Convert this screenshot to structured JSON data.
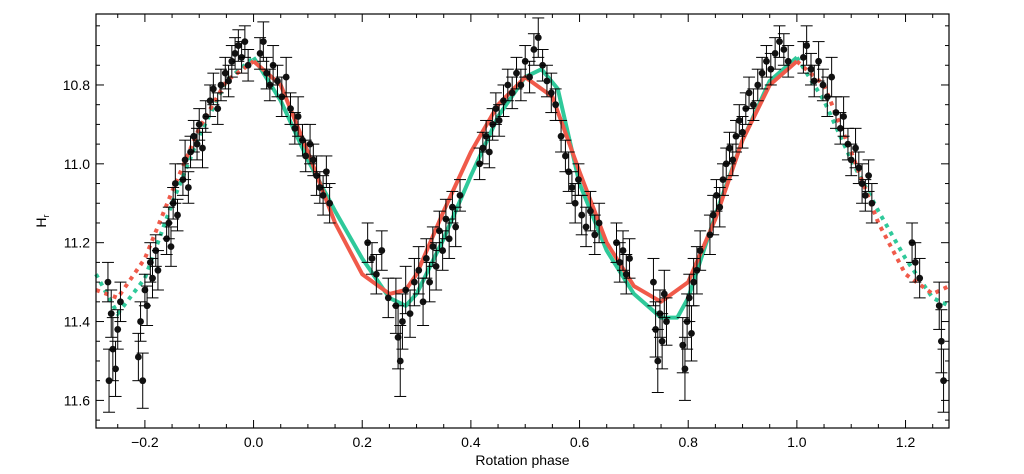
{
  "chart_data": {
    "type": "scatter",
    "xlabel": "Rotation phase",
    "ylabel": "H",
    "ylabel_subscript": "r",
    "xlim": [
      -0.29,
      1.28
    ],
    "ylim": [
      11.67,
      10.62
    ],
    "y_inverted": true,
    "grid": false,
    "x_ticks": [
      {
        "v": -0.2,
        "label": "−0.2"
      },
      {
        "v": 0.0,
        "label": "0.0"
      },
      {
        "v": 0.2,
        "label": "0.2"
      },
      {
        "v": 0.4,
        "label": "0.4"
      },
      {
        "v": 0.6,
        "label": "0.6"
      },
      {
        "v": 0.8,
        "label": "0.8"
      },
      {
        "v": 1.0,
        "label": "1.0"
      },
      {
        "v": 1.2,
        "label": "1.2"
      }
    ],
    "y_ticks": [
      {
        "v": 10.8,
        "label": "10.8"
      },
      {
        "v": 11.0,
        "label": "11.0"
      },
      {
        "v": 11.2,
        "label": "11.2"
      },
      {
        "v": 11.4,
        "label": "11.4"
      },
      {
        "v": 11.6,
        "label": "11.6"
      }
    ],
    "models": [
      {
        "color": "#2fc99a",
        "solid_range": [
          0.0,
          1.0
        ],
        "x": [
          -0.29,
          -0.25,
          -0.2,
          -0.15,
          -0.1,
          -0.05,
          0.0,
          0.05,
          0.1,
          0.15,
          0.2,
          0.25,
          0.28,
          0.3,
          0.35,
          0.4,
          0.45,
          0.5,
          0.53,
          0.56,
          0.6,
          0.65,
          0.7,
          0.75,
          0.78,
          0.8,
          0.85,
          0.9,
          0.95,
          1.0,
          1.05,
          1.1,
          1.15,
          1.2,
          1.25,
          1.28
        ],
        "y": [
          11.28,
          11.38,
          11.29,
          11.1,
          10.93,
          10.79,
          10.73,
          10.84,
          10.99,
          11.12,
          11.24,
          11.34,
          11.36,
          11.33,
          11.19,
          11.03,
          10.88,
          10.78,
          10.76,
          10.81,
          11.05,
          11.22,
          11.33,
          11.39,
          11.39,
          11.34,
          11.13,
          10.94,
          10.79,
          10.73,
          10.84,
          10.99,
          11.12,
          11.24,
          11.34,
          11.36
        ]
      },
      {
        "color": "#f05a4a",
        "solid_range": [
          0.0,
          1.0
        ],
        "x": [
          -0.29,
          -0.25,
          -0.2,
          -0.15,
          -0.1,
          -0.05,
          0.0,
          0.05,
          0.1,
          0.15,
          0.2,
          0.25,
          0.28,
          0.3,
          0.35,
          0.4,
          0.45,
          0.5,
          0.55,
          0.6,
          0.65,
          0.7,
          0.75,
          0.8,
          0.85,
          0.9,
          0.95,
          1.0,
          1.05,
          1.1,
          1.15,
          1.2,
          1.25,
          1.28
        ],
        "y": [
          11.32,
          11.34,
          11.24,
          11.07,
          10.91,
          10.79,
          10.74,
          10.8,
          10.97,
          11.15,
          11.28,
          11.33,
          11.32,
          11.28,
          11.12,
          10.97,
          10.85,
          10.78,
          10.83,
          11.02,
          11.2,
          11.31,
          11.35,
          11.3,
          11.14,
          10.94,
          10.8,
          10.74,
          10.8,
          10.97,
          11.15,
          11.28,
          11.33,
          11.31
        ]
      }
    ],
    "observations": [
      {
        "x": -0.268,
        "y": 11.3,
        "err": 0.05
      },
      {
        "x": -0.262,
        "y": 11.38,
        "err": 0.06
      },
      {
        "x": -0.259,
        "y": 11.47,
        "err": 0.08
      },
      {
        "x": -0.254,
        "y": 11.52,
        "err": 0.07
      },
      {
        "x": -0.25,
        "y": 11.42,
        "err": 0.05
      },
      {
        "x": -0.266,
        "y": 11.55,
        "err": 0.08
      },
      {
        "x": -0.245,
        "y": 11.35,
        "err": 0.05
      },
      {
        "x": -0.212,
        "y": 11.49,
        "err": 0.06
      },
      {
        "x": -0.208,
        "y": 11.4,
        "err": 0.05
      },
      {
        "x": -0.204,
        "y": 11.55,
        "err": 0.07
      },
      {
        "x": -0.2,
        "y": 11.32,
        "err": 0.04
      },
      {
        "x": -0.196,
        "y": 11.36,
        "err": 0.05
      },
      {
        "x": -0.19,
        "y": 11.25,
        "err": 0.05
      },
      {
        "x": -0.186,
        "y": 11.29,
        "err": 0.05
      },
      {
        "x": -0.18,
        "y": 11.22,
        "err": 0.04
      },
      {
        "x": -0.176,
        "y": 11.27,
        "err": 0.05
      },
      {
        "x": -0.16,
        "y": 11.19,
        "err": 0.04
      },
      {
        "x": -0.156,
        "y": 11.15,
        "err": 0.04
      },
      {
        "x": -0.152,
        "y": 11.21,
        "err": 0.05
      },
      {
        "x": -0.148,
        "y": 11.1,
        "err": 0.04
      },
      {
        "x": -0.144,
        "y": 11.05,
        "err": 0.05
      },
      {
        "x": -0.14,
        "y": 11.13,
        "err": 0.04
      },
      {
        "x": -0.13,
        "y": 11.04,
        "err": 0.04
      },
      {
        "x": -0.126,
        "y": 10.99,
        "err": 0.05
      },
      {
        "x": -0.12,
        "y": 11.06,
        "err": 0.04
      },
      {
        "x": -0.116,
        "y": 10.97,
        "err": 0.04
      },
      {
        "x": -0.11,
        "y": 10.93,
        "err": 0.04
      },
      {
        "x": -0.104,
        "y": 10.95,
        "err": 0.04
      },
      {
        "x": -0.1,
        "y": 10.9,
        "err": 0.04
      },
      {
        "x": -0.094,
        "y": 10.96,
        "err": 0.05
      },
      {
        "x": -0.088,
        "y": 10.88,
        "err": 0.04
      },
      {
        "x": -0.08,
        "y": 10.84,
        "err": 0.04
      },
      {
        "x": -0.074,
        "y": 10.81,
        "err": 0.04
      },
      {
        "x": -0.066,
        "y": 10.86,
        "err": 0.04
      },
      {
        "x": -0.06,
        "y": 10.8,
        "err": 0.04
      },
      {
        "x": -0.052,
        "y": 10.77,
        "err": 0.04
      },
      {
        "x": -0.046,
        "y": 10.79,
        "err": 0.04
      },
      {
        "x": -0.04,
        "y": 10.74,
        "err": 0.04
      },
      {
        "x": -0.034,
        "y": 10.72,
        "err": 0.04
      },
      {
        "x": -0.028,
        "y": 10.7,
        "err": 0.04
      },
      {
        "x": -0.022,
        "y": 10.73,
        "err": 0.04
      },
      {
        "x": -0.016,
        "y": 10.69,
        "err": 0.04
      },
      {
        "x": -0.01,
        "y": 10.75,
        "err": 0.04
      },
      {
        "x": 0.012,
        "y": 10.72,
        "err": 0.04
      },
      {
        "x": 0.018,
        "y": 10.69,
        "err": 0.05
      },
      {
        "x": 0.024,
        "y": 10.77,
        "err": 0.04
      },
      {
        "x": 0.03,
        "y": 10.8,
        "err": 0.04
      },
      {
        "x": 0.036,
        "y": 10.75,
        "err": 0.05
      },
      {
        "x": 0.044,
        "y": 10.79,
        "err": 0.04
      },
      {
        "x": 0.052,
        "y": 10.83,
        "err": 0.05
      },
      {
        "x": 0.06,
        "y": 10.78,
        "err": 0.05
      },
      {
        "x": 0.068,
        "y": 10.86,
        "err": 0.04
      },
      {
        "x": 0.076,
        "y": 10.91,
        "err": 0.04
      },
      {
        "x": 0.082,
        "y": 10.88,
        "err": 0.05
      },
      {
        "x": 0.09,
        "y": 10.94,
        "err": 0.04
      },
      {
        "x": 0.096,
        "y": 10.98,
        "err": 0.04
      },
      {
        "x": 0.104,
        "y": 10.95,
        "err": 0.05
      },
      {
        "x": 0.11,
        "y": 10.99,
        "err": 0.04
      },
      {
        "x": 0.116,
        "y": 11.03,
        "err": 0.05
      },
      {
        "x": 0.122,
        "y": 11.06,
        "err": 0.04
      },
      {
        "x": 0.128,
        "y": 11.08,
        "err": 0.05
      },
      {
        "x": 0.134,
        "y": 11.02,
        "err": 0.04
      },
      {
        "x": 0.14,
        "y": 11.1,
        "err": 0.05
      },
      {
        "x": 0.21,
        "y": 11.2,
        "err": 0.05
      },
      {
        "x": 0.218,
        "y": 11.24,
        "err": 0.04
      },
      {
        "x": 0.226,
        "y": 11.28,
        "err": 0.05
      },
      {
        "x": 0.236,
        "y": 11.22,
        "err": 0.05
      },
      {
        "x": 0.248,
        "y": 11.34,
        "err": 0.05
      },
      {
        "x": 0.262,
        "y": 11.36,
        "err": 0.07
      },
      {
        "x": 0.266,
        "y": 11.44,
        "err": 0.08
      },
      {
        "x": 0.27,
        "y": 11.5,
        "err": 0.09
      },
      {
        "x": 0.274,
        "y": 11.4,
        "err": 0.07
      },
      {
        "x": 0.28,
        "y": 11.32,
        "err": 0.06
      },
      {
        "x": 0.288,
        "y": 11.38,
        "err": 0.06
      },
      {
        "x": 0.296,
        "y": 11.3,
        "err": 0.06
      },
      {
        "x": 0.304,
        "y": 11.27,
        "err": 0.06
      },
      {
        "x": 0.312,
        "y": 11.35,
        "err": 0.06
      },
      {
        "x": 0.318,
        "y": 11.24,
        "err": 0.05
      },
      {
        "x": 0.324,
        "y": 11.3,
        "err": 0.05
      },
      {
        "x": 0.33,
        "y": 11.21,
        "err": 0.05
      },
      {
        "x": 0.336,
        "y": 11.26,
        "err": 0.06
      },
      {
        "x": 0.342,
        "y": 11.17,
        "err": 0.05
      },
      {
        "x": 0.348,
        "y": 11.22,
        "err": 0.05
      },
      {
        "x": 0.354,
        "y": 11.14,
        "err": 0.05
      },
      {
        "x": 0.36,
        "y": 11.19,
        "err": 0.05
      },
      {
        "x": 0.366,
        "y": 11.11,
        "err": 0.04
      },
      {
        "x": 0.372,
        "y": 11.16,
        "err": 0.05
      },
      {
        "x": 0.38,
        "y": 11.08,
        "err": 0.04
      },
      {
        "x": 0.416,
        "y": 11.0,
        "err": 0.04
      },
      {
        "x": 0.422,
        "y": 10.96,
        "err": 0.04
      },
      {
        "x": 0.428,
        "y": 10.93,
        "err": 0.04
      },
      {
        "x": 0.434,
        "y": 10.97,
        "err": 0.04
      },
      {
        "x": 0.44,
        "y": 10.9,
        "err": 0.04
      },
      {
        "x": 0.446,
        "y": 10.86,
        "err": 0.04
      },
      {
        "x": 0.452,
        "y": 10.89,
        "err": 0.04
      },
      {
        "x": 0.46,
        "y": 10.84,
        "err": 0.04
      },
      {
        "x": 0.468,
        "y": 10.8,
        "err": 0.04
      },
      {
        "x": 0.476,
        "y": 10.82,
        "err": 0.04
      },
      {
        "x": 0.484,
        "y": 10.77,
        "err": 0.04
      },
      {
        "x": 0.492,
        "y": 10.8,
        "err": 0.04
      },
      {
        "x": 0.5,
        "y": 10.74,
        "err": 0.04
      },
      {
        "x": 0.508,
        "y": 10.78,
        "err": 0.04
      },
      {
        "x": 0.516,
        "y": 10.71,
        "err": 0.04
      },
      {
        "x": 0.524,
        "y": 10.68,
        "err": 0.05
      },
      {
        "x": 0.532,
        "y": 10.75,
        "err": 0.04
      },
      {
        "x": 0.54,
        "y": 10.79,
        "err": 0.04
      },
      {
        "x": 0.548,
        "y": 10.82,
        "err": 0.05
      },
      {
        "x": 0.556,
        "y": 10.85,
        "err": 0.04
      },
      {
        "x": 0.566,
        "y": 10.93,
        "err": 0.04
      },
      {
        "x": 0.574,
        "y": 10.98,
        "err": 0.04
      },
      {
        "x": 0.58,
        "y": 11.02,
        "err": 0.05
      },
      {
        "x": 0.586,
        "y": 11.06,
        "err": 0.04
      },
      {
        "x": 0.592,
        "y": 11.1,
        "err": 0.05
      },
      {
        "x": 0.598,
        "y": 11.04,
        "err": 0.04
      },
      {
        "x": 0.604,
        "y": 11.13,
        "err": 0.05
      },
      {
        "x": 0.612,
        "y": 11.16,
        "err": 0.05
      },
      {
        "x": 0.62,
        "y": 11.12,
        "err": 0.05
      },
      {
        "x": 0.628,
        "y": 11.18,
        "err": 0.05
      },
      {
        "x": 0.636,
        "y": 11.15,
        "err": 0.05
      },
      {
        "x": 0.668,
        "y": 11.2,
        "err": 0.05
      },
      {
        "x": 0.674,
        "y": 11.25,
        "err": 0.05
      },
      {
        "x": 0.68,
        "y": 11.22,
        "err": 0.05
      },
      {
        "x": 0.686,
        "y": 11.28,
        "err": 0.05
      },
      {
        "x": 0.692,
        "y": 11.24,
        "err": 0.05
      },
      {
        "x": 0.736,
        "y": 11.3,
        "err": 0.06
      },
      {
        "x": 0.74,
        "y": 11.42,
        "err": 0.07
      },
      {
        "x": 0.744,
        "y": 11.5,
        "err": 0.08
      },
      {
        "x": 0.748,
        "y": 11.38,
        "err": 0.06
      },
      {
        "x": 0.752,
        "y": 11.45,
        "err": 0.07
      },
      {
        "x": 0.756,
        "y": 11.33,
        "err": 0.06
      },
      {
        "x": 0.76,
        "y": 11.4,
        "err": 0.06
      },
      {
        "x": 0.79,
        "y": 11.46,
        "err": 0.07
      },
      {
        "x": 0.794,
        "y": 11.52,
        "err": 0.08
      },
      {
        "x": 0.798,
        "y": 11.4,
        "err": 0.07
      },
      {
        "x": 0.802,
        "y": 11.34,
        "err": 0.06
      },
      {
        "x": 0.806,
        "y": 11.43,
        "err": 0.07
      },
      {
        "x": 0.81,
        "y": 11.3,
        "err": 0.06
      },
      {
        "x": 0.816,
        "y": 11.27,
        "err": 0.06
      },
      {
        "x": 0.822,
        "y": 11.22,
        "err": 0.05
      },
      {
        "x": 0.84,
        "y": 11.18,
        "err": 0.05
      },
      {
        "x": 0.846,
        "y": 11.13,
        "err": 0.05
      },
      {
        "x": 0.852,
        "y": 11.08,
        "err": 0.04
      },
      {
        "x": 0.858,
        "y": 11.11,
        "err": 0.05
      },
      {
        "x": 0.864,
        "y": 11.04,
        "err": 0.04
      },
      {
        "x": 0.87,
        "y": 11.0,
        "err": 0.04
      },
      {
        "x": 0.876,
        "y": 10.96,
        "err": 0.04
      },
      {
        "x": 0.882,
        "y": 10.99,
        "err": 0.04
      },
      {
        "x": 0.888,
        "y": 10.93,
        "err": 0.04
      },
      {
        "x": 0.894,
        "y": 10.89,
        "err": 0.04
      },
      {
        "x": 0.9,
        "y": 10.92,
        "err": 0.04
      },
      {
        "x": 0.906,
        "y": 10.86,
        "err": 0.04
      },
      {
        "x": 0.912,
        "y": 10.82,
        "err": 0.04
      },
      {
        "x": 0.92,
        "y": 10.85,
        "err": 0.04
      },
      {
        "x": 0.928,
        "y": 10.8,
        "err": 0.04
      },
      {
        "x": 0.936,
        "y": 10.77,
        "err": 0.04
      },
      {
        "x": 0.944,
        "y": 10.74,
        "err": 0.04
      },
      {
        "x": 0.952,
        "y": 10.76,
        "err": 0.04
      },
      {
        "x": 0.96,
        "y": 10.72,
        "err": 0.04
      },
      {
        "x": 0.968,
        "y": 10.69,
        "err": 0.04
      },
      {
        "x": 0.976,
        "y": 10.71,
        "err": 0.04
      },
      {
        "x": 0.984,
        "y": 10.74,
        "err": 0.04
      },
      {
        "x": 1.012,
        "y": 10.73,
        "err": 0.04
      },
      {
        "x": 1.018,
        "y": 10.7,
        "err": 0.05
      },
      {
        "x": 1.026,
        "y": 10.76,
        "err": 0.04
      },
      {
        "x": 1.032,
        "y": 10.79,
        "err": 0.04
      },
      {
        "x": 1.04,
        "y": 10.74,
        "err": 0.05
      },
      {
        "x": 1.048,
        "y": 10.8,
        "err": 0.04
      },
      {
        "x": 1.056,
        "y": 10.83,
        "err": 0.05
      },
      {
        "x": 1.064,
        "y": 10.78,
        "err": 0.05
      },
      {
        "x": 1.072,
        "y": 10.87,
        "err": 0.04
      },
      {
        "x": 1.08,
        "y": 10.91,
        "err": 0.04
      },
      {
        "x": 1.086,
        "y": 10.88,
        "err": 0.05
      },
      {
        "x": 1.094,
        "y": 10.95,
        "err": 0.04
      },
      {
        "x": 1.1,
        "y": 10.99,
        "err": 0.04
      },
      {
        "x": 1.108,
        "y": 10.96,
        "err": 0.05
      },
      {
        "x": 1.114,
        "y": 11.01,
        "err": 0.04
      },
      {
        "x": 1.12,
        "y": 11.05,
        "err": 0.05
      },
      {
        "x": 1.126,
        "y": 11.08,
        "err": 0.04
      },
      {
        "x": 1.132,
        "y": 11.03,
        "err": 0.04
      },
      {
        "x": 1.138,
        "y": 11.1,
        "err": 0.05
      },
      {
        "x": 1.212,
        "y": 11.2,
        "err": 0.05
      },
      {
        "x": 1.218,
        "y": 11.25,
        "err": 0.05
      },
      {
        "x": 1.226,
        "y": 11.29,
        "err": 0.05
      },
      {
        "x": 1.262,
        "y": 11.36,
        "err": 0.06
      },
      {
        "x": 1.266,
        "y": 11.45,
        "err": 0.08
      },
      {
        "x": 1.27,
        "y": 11.55,
        "err": 0.08
      }
    ]
  }
}
